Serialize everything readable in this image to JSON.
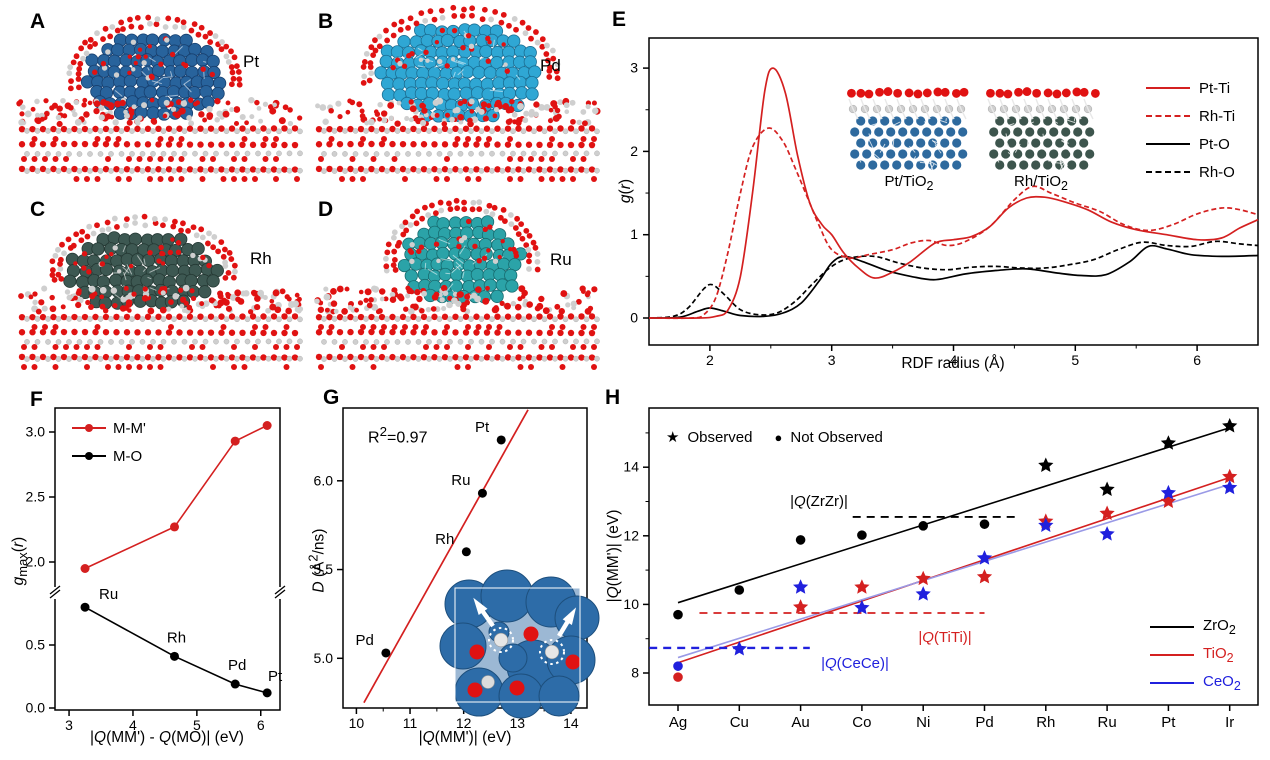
{
  "panels": {
    "a": {
      "letter": "A",
      "metal": "Pt",
      "cluster_color": "#28639c",
      "cluster_dark": "#173f6e"
    },
    "b": {
      "letter": "B",
      "metal": "Pd",
      "cluster_color": "#2fa7d4",
      "cluster_dark": "#1b6e93"
    },
    "c": {
      "letter": "C",
      "metal": "Rh",
      "cluster_color": "#3d5852",
      "cluster_dark": "#243833"
    },
    "d": {
      "letter": "D",
      "metal": "Ru",
      "cluster_color": "#2ba3a8",
      "cluster_dark": "#176c70"
    },
    "e": {
      "letter": "E"
    },
    "f": {
      "letter": "F"
    },
    "g": {
      "letter": "G"
    },
    "h": {
      "letter": "H"
    }
  },
  "atom_colors": {
    "oxygen": "#e01212",
    "titanium": "#cfcfcf",
    "support_blue": "#2d6ca8"
  },
  "chart_data": [
    {
      "id": "E",
      "type": "line",
      "xlabel": "RDF radius (Å)",
      "ylabel": "~{g}(~{r})",
      "xlim": [
        1.5,
        6.5
      ],
      "ylim": [
        -0.32,
        3.36
      ],
      "xticks": [
        2,
        3,
        4,
        5,
        6
      ],
      "yticks": [
        0,
        1,
        2,
        3
      ],
      "legend_position": "right-inside",
      "grid": false,
      "series": [
        {
          "name": "Rh-O",
          "color": "#000000",
          "dash": "dashed",
          "points": [
            [
              1.5,
              0
            ],
            [
              1.7,
              0.02
            ],
            [
              1.82,
              0.12
            ],
            [
              1.95,
              0.35
            ],
            [
              2.02,
              0.4
            ],
            [
              2.12,
              0.28
            ],
            [
              2.25,
              0.1
            ],
            [
              2.4,
              0.04
            ],
            [
              2.55,
              0.06
            ],
            [
              2.7,
              0.2
            ],
            [
              2.85,
              0.42
            ],
            [
              3.0,
              0.62
            ],
            [
              3.15,
              0.72
            ],
            [
              3.35,
              0.74
            ],
            [
              3.55,
              0.66
            ],
            [
              3.75,
              0.6
            ],
            [
              3.95,
              0.58
            ],
            [
              4.15,
              0.61
            ],
            [
              4.35,
              0.62
            ],
            [
              4.55,
              0.6
            ],
            [
              4.75,
              0.6
            ],
            [
              4.95,
              0.64
            ],
            [
              5.15,
              0.7
            ],
            [
              5.35,
              0.82
            ],
            [
              5.55,
              0.91
            ],
            [
              5.75,
              0.87
            ],
            [
              5.95,
              0.86
            ],
            [
              6.15,
              0.92
            ],
            [
              6.35,
              0.89
            ],
            [
              6.5,
              0.87
            ]
          ]
        },
        {
          "name": "Pt-O",
          "color": "#000000",
          "dash": "solid",
          "points": [
            [
              1.5,
              0
            ],
            [
              1.75,
              0.01
            ],
            [
              1.9,
              0.08
            ],
            [
              2.0,
              0.12
            ],
            [
              2.12,
              0.08
            ],
            [
              2.25,
              0.03
            ],
            [
              2.45,
              0.02
            ],
            [
              2.6,
              0.06
            ],
            [
              2.75,
              0.18
            ],
            [
              2.9,
              0.45
            ],
            [
              3.0,
              0.66
            ],
            [
              3.1,
              0.74
            ],
            [
              3.25,
              0.68
            ],
            [
              3.45,
              0.57
            ],
            [
              3.65,
              0.5
            ],
            [
              3.85,
              0.46
            ],
            [
              4.1,
              0.53
            ],
            [
              4.35,
              0.57
            ],
            [
              4.6,
              0.59
            ],
            [
              4.85,
              0.54
            ],
            [
              5.05,
              0.51
            ],
            [
              5.25,
              0.52
            ],
            [
              5.45,
              0.68
            ],
            [
              5.6,
              0.86
            ],
            [
              5.75,
              0.83
            ],
            [
              5.95,
              0.76
            ],
            [
              6.2,
              0.74
            ],
            [
              6.5,
              0.75
            ]
          ]
        },
        {
          "name": "Rh-Ti",
          "color": "#d42020",
          "dash": "dashed",
          "points": [
            [
              1.5,
              0
            ],
            [
              1.85,
              0
            ],
            [
              1.95,
              0.04
            ],
            [
              2.05,
              0.25
            ],
            [
              2.15,
              0.8
            ],
            [
              2.25,
              1.5
            ],
            [
              2.35,
              2.05
            ],
            [
              2.48,
              2.28
            ],
            [
              2.6,
              2.12
            ],
            [
              2.7,
              1.8
            ],
            [
              2.8,
              1.45
            ],
            [
              2.9,
              1.1
            ],
            [
              3.0,
              0.82
            ],
            [
              3.15,
              0.72
            ],
            [
              3.3,
              0.76
            ],
            [
              3.5,
              0.82
            ],
            [
              3.65,
              0.9
            ],
            [
              3.8,
              0.93
            ],
            [
              3.95,
              0.87
            ],
            [
              4.1,
              0.92
            ],
            [
              4.3,
              1.1
            ],
            [
              4.5,
              1.42
            ],
            [
              4.65,
              1.58
            ],
            [
              4.8,
              1.5
            ],
            [
              5.0,
              1.38
            ],
            [
              5.2,
              1.28
            ],
            [
              5.4,
              1.12
            ],
            [
              5.6,
              1.05
            ],
            [
              5.8,
              1.12
            ],
            [
              6.0,
              1.25
            ],
            [
              6.2,
              1.32
            ],
            [
              6.35,
              1.3
            ],
            [
              6.5,
              1.24
            ]
          ]
        },
        {
          "name": "Pt-Ti",
          "color": "#d42020",
          "dash": "solid",
          "points": [
            [
              1.5,
              0
            ],
            [
              1.9,
              0
            ],
            [
              2.05,
              0.02
            ],
            [
              2.15,
              0.1
            ],
            [
              2.25,
              0.5
            ],
            [
              2.35,
              1.5
            ],
            [
              2.45,
              2.72
            ],
            [
              2.52,
              3.0
            ],
            [
              2.62,
              2.7
            ],
            [
              2.72,
              1.95
            ],
            [
              2.82,
              1.38
            ],
            [
              2.92,
              1.12
            ],
            [
              3.0,
              1.0
            ],
            [
              3.1,
              0.78
            ],
            [
              3.22,
              0.6
            ],
            [
              3.35,
              0.48
            ],
            [
              3.5,
              0.55
            ],
            [
              3.65,
              0.68
            ],
            [
              3.85,
              0.9
            ],
            [
              4.0,
              0.94
            ],
            [
              4.15,
              0.98
            ],
            [
              4.3,
              1.1
            ],
            [
              4.45,
              1.32
            ],
            [
              4.6,
              1.44
            ],
            [
              4.75,
              1.45
            ],
            [
              4.9,
              1.4
            ],
            [
              5.1,
              1.3
            ],
            [
              5.3,
              1.15
            ],
            [
              5.5,
              1.06
            ],
            [
              5.75,
              1.0
            ],
            [
              6.0,
              0.94
            ],
            [
              6.2,
              0.96
            ],
            [
              6.35,
              1.08
            ],
            [
              6.5,
              1.18
            ]
          ]
        }
      ],
      "legend_order": [
        "Pt-Ti",
        "Rh-Ti",
        "Pt-O",
        "Rh-O"
      ],
      "insets": [
        {
          "label": "Pt/TiO_{2}",
          "metal_color": "#2e6a9e"
        },
        {
          "label": "Rh/TiO_{2}",
          "metal_color": "#3d554d"
        }
      ]
    },
    {
      "id": "F",
      "type": "line",
      "broken_y_axis": true,
      "xlabel": "|~{Q}(MM') - ~{Q}(MO)| (eV)",
      "ylabel": "~{g}_{max}(~{r})",
      "xticks": [
        3,
        4,
        5,
        6
      ],
      "yticks_lower": [
        0.0,
        0.5
      ],
      "yticks_upper": [
        2.0,
        2.5,
        3.0
      ],
      "x": [
        3.25,
        4.65,
        5.6,
        6.1
      ],
      "series": [
        {
          "name": "M-M'",
          "color": "#d42020",
          "values": [
            1.95,
            2.27,
            2.93,
            3.05
          ]
        },
        {
          "name": "M-O",
          "color": "#000000",
          "values": [
            0.8,
            0.41,
            0.19,
            0.12
          ],
          "point_labels": [
            "Ru",
            "Rh",
            "Pd",
            "Pt"
          ]
        }
      ]
    },
    {
      "id": "G",
      "type": "scatter",
      "xlabel": "|~{Q}(MM')| (eV)",
      "ylabel": "~{D} (Å^{2}/ns)",
      "annotation": "R^{2}=0.97",
      "xticks": [
        10,
        11,
        12,
        13,
        14
      ],
      "yticks": [
        5.0,
        5.5,
        6.0
      ],
      "points": [
        {
          "label": "Pd",
          "x": 10.55,
          "y": 5.03
        },
        {
          "label": "Rh",
          "x": 12.05,
          "y": 5.6
        },
        {
          "label": "Ru",
          "x": 12.35,
          "y": 5.93
        },
        {
          "label": "Pt",
          "x": 12.7,
          "y": 6.23
        }
      ],
      "fit_line": {
        "color": "#d42020",
        "from": [
          10.14,
          4.75
        ],
        "to": [
          13.2,
          6.4
        ]
      }
    },
    {
      "id": "H",
      "type": "scatter",
      "ylabel": "|~{Q}(MM')| (eV)",
      "categories": [
        "Ag",
        "Cu",
        "Au",
        "Co",
        "Ni",
        "Pd",
        "Rh",
        "Ru",
        "Pt",
        "Ir"
      ],
      "yticks": [
        8,
        10,
        12,
        14
      ],
      "marker_legend": {
        "observed": "Observed",
        "not_observed": "Not Observed"
      },
      "series": [
        {
          "name": "ZrO_{2}",
          "color": "#000000",
          "line_color": "#000000",
          "line": [
            10.05,
            15.15
          ],
          "values": [
            9.7,
            10.42,
            11.88,
            12.02,
            12.29,
            12.34,
            14.05,
            13.35,
            14.7,
            15.2
          ],
          "observed": [
            false,
            false,
            false,
            false,
            false,
            false,
            true,
            true,
            true,
            true
          ]
        },
        {
          "name": "TiO_{2}",
          "color": "#d42020",
          "line_color": "#d42020",
          "line": [
            8.3,
            13.7
          ],
          "values": [
            7.88,
            null,
            9.92,
            10.5,
            10.75,
            10.8,
            12.42,
            12.65,
            13.0,
            13.72
          ],
          "observed": [
            false,
            false,
            true,
            true,
            true,
            true,
            true,
            true,
            true,
            true
          ]
        },
        {
          "name": "CeO_{2}",
          "color": "#2020dd",
          "line_color": "#9a9ae6",
          "line": [
            8.45,
            13.5
          ],
          "values": [
            8.2,
            8.7,
            10.5,
            9.9,
            10.3,
            11.35,
            12.3,
            12.05,
            13.25,
            13.4
          ],
          "observed": [
            false,
            true,
            true,
            true,
            true,
            true,
            true,
            true,
            true,
            true
          ]
        }
      ],
      "dashed_levels": [
        {
          "label": "|~{Q}(ZrZr)|",
          "value": 12.55,
          "color": "#000000",
          "from_cat": 2.85,
          "to_cat": 5.55
        },
        {
          "label": "|~{Q}(TiTi)|",
          "value": 9.75,
          "color": "#d42020",
          "from_cat": 0.35,
          "to_cat": 5.0
        },
        {
          "label": "|~{Q}(CeCe)|",
          "value": 8.73,
          "color": "#2020dd",
          "from_cat": -0.47,
          "to_cat": 2.15
        }
      ]
    }
  ]
}
